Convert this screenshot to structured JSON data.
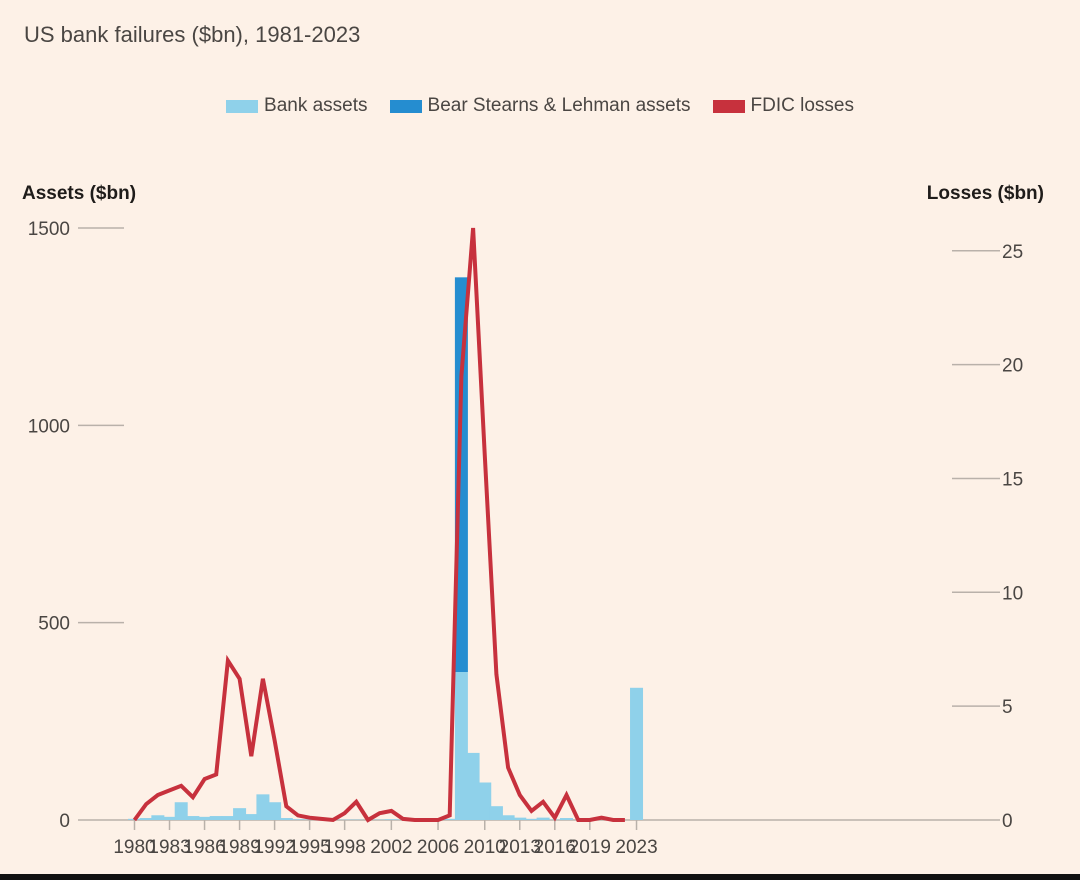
{
  "chart_data": {
    "type": "bar+line",
    "title": "US bank failures ($bn), 1981-2023",
    "left_axis_label": "Assets ($bn)",
    "right_axis_label": "Losses ($bn)",
    "left_ylim": [
      0,
      1500
    ],
    "right_ylim": [
      0,
      26
    ],
    "left_ticks": [
      0,
      500,
      1000,
      1500
    ],
    "right_ticks": [
      0,
      5,
      10,
      15,
      20,
      25
    ],
    "x_ticks": [
      "1980",
      "1983",
      "1986",
      "1989",
      "1992",
      "1995",
      "1998",
      "2002",
      "2006",
      "2010",
      "2013",
      "2016",
      "2019",
      "2023"
    ],
    "legend": [
      {
        "name": "Bank assets",
        "color": "#8fd1ea"
      },
      {
        "name": "Bear Stearns & Lehman assets",
        "color": "#258dd0"
      },
      {
        "name": "FDIC losses",
        "color": "#c7313d"
      }
    ],
    "years": [
      1980,
      1981,
      1982,
      1983,
      1984,
      1985,
      1986,
      1987,
      1988,
      1989,
      1990,
      1991,
      1992,
      1993,
      1994,
      1995,
      1996,
      1997,
      1998,
      1999,
      2000,
      2001,
      2002,
      2003,
      2004,
      2005,
      2006,
      2007,
      2008,
      2009,
      2010,
      2011,
      2012,
      2013,
      2014,
      2015,
      2016,
      2017,
      2018,
      2019,
      2020,
      2021,
      2022,
      2023
    ],
    "series": [
      {
        "name": "Bank assets",
        "values": [
          3,
          5,
          12,
          8,
          45,
          10,
          8,
          10,
          10,
          30,
          15,
          65,
          45,
          5,
          2,
          1,
          1,
          1,
          1,
          1,
          0,
          1,
          2,
          1,
          0,
          0,
          0,
          3,
          375,
          170,
          95,
          35,
          12,
          6,
          3,
          6,
          1,
          5,
          0,
          0,
          0,
          0,
          0,
          335
        ]
      },
      {
        "name": "Bear Stearns & Lehman assets",
        "values": [
          0,
          0,
          0,
          0,
          0,
          0,
          0,
          0,
          0,
          0,
          0,
          0,
          0,
          0,
          0,
          0,
          0,
          0,
          0,
          0,
          0,
          0,
          0,
          0,
          0,
          0,
          0,
          0,
          1000,
          0,
          0,
          0,
          0,
          0,
          0,
          0,
          0,
          0,
          0,
          0,
          0,
          0,
          0,
          0
        ]
      },
      {
        "name": "FDIC losses",
        "values": [
          0,
          0.7,
          1.1,
          1.3,
          1.5,
          1.0,
          1.8,
          2.0,
          7.0,
          6.2,
          2.8,
          6.2,
          3.5,
          0.6,
          0.2,
          0.1,
          0.05,
          0.0,
          0.3,
          0.8,
          0.0,
          0.3,
          0.4,
          0.05,
          0.0,
          0.0,
          0.0,
          0.2,
          19.5,
          26.0,
          16.0,
          6.4,
          2.3,
          1.1,
          0.4,
          0.8,
          0.1,
          1.1,
          0.0,
          0.0,
          0.1,
          0.0,
          0.0,
          null
        ]
      }
    ]
  }
}
